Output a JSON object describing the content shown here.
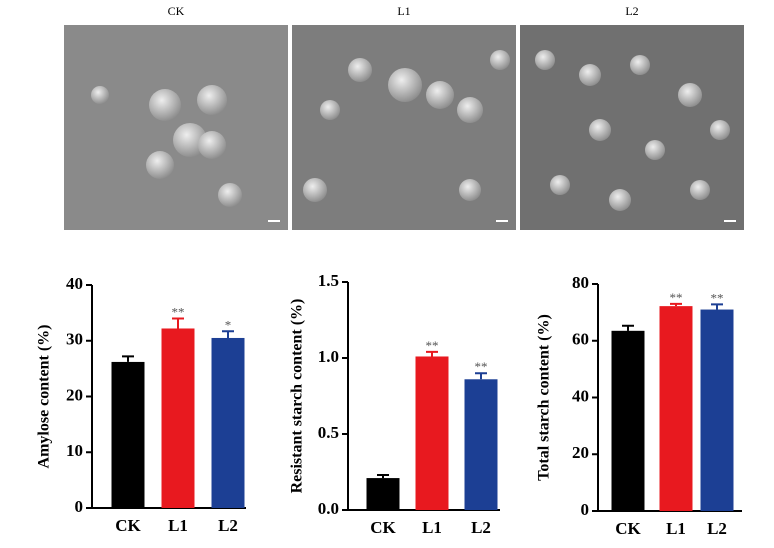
{
  "panels": {
    "labels": [
      "CK",
      "L1",
      "L2"
    ]
  },
  "chart_data": [
    {
      "type": "bar",
      "y_label": "Amylose content (%)",
      "categories": [
        "CK",
        "L1",
        "L2"
      ],
      "values": [
        26.2,
        32.2,
        30.5
      ],
      "errors": [
        1.0,
        1.8,
        1.2
      ],
      "significance": [
        null,
        "**",
        "*"
      ],
      "colors": [
        "#000000",
        "#e8191f",
        "#1c3f94"
      ],
      "ylim": [
        0,
        40
      ],
      "yticks": [
        0,
        10,
        20,
        30,
        40
      ]
    },
    {
      "type": "bar",
      "y_label": "Resistant starch content (%)",
      "categories": [
        "CK",
        "L1",
        "L2"
      ],
      "values": [
        0.21,
        1.01,
        0.86
      ],
      "errors": [
        0.02,
        0.03,
        0.04
      ],
      "significance": [
        null,
        "**",
        "**"
      ],
      "colors": [
        "#000000",
        "#e8191f",
        "#1c3f94"
      ],
      "ylim": [
        0,
        1.5
      ],
      "yticks": [
        {
          "value": 0,
          "label": "0.0"
        },
        0.5,
        {
          "value": 1,
          "label": "1.0"
        },
        1.5
      ]
    },
    {
      "type": "bar",
      "y_label": "Total starch content (%)",
      "categories": [
        "CK",
        "L1",
        "L2"
      ],
      "values": [
        63.5,
        72.2,
        71.0
      ],
      "errors": [
        1.8,
        0.8,
        1.8
      ],
      "significance": [
        null,
        "**",
        "**"
      ],
      "colors": [
        "#000000",
        "#e8191f",
        "#1c3f94"
      ],
      "ylim": [
        0,
        80
      ],
      "yticks": [
        0,
        20,
        40,
        60,
        80
      ]
    }
  ]
}
